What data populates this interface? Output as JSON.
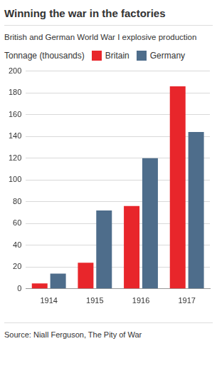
{
  "chart_data": {
    "type": "bar",
    "title": "Winning the war in the factories",
    "subtitle": "British and German World War I explosive production",
    "y_label": "Tonnage (thousands)",
    "source": "Source: Niall Ferguson, The Pity of War",
    "categories": [
      "1914",
      "1915",
      "1916",
      "1917"
    ],
    "series": [
      {
        "name": "Britain",
        "color": "#e8262b",
        "values": [
          5,
          24,
          76,
          186
        ]
      },
      {
        "name": "Germany",
        "color": "#4e6d8b",
        "values": [
          14,
          72,
          120,
          144
        ]
      }
    ],
    "ylim": [
      0,
      200
    ],
    "yticks": [
      0,
      20,
      40,
      60,
      80,
      100,
      120,
      140,
      160,
      180,
      200
    ],
    "grid": true,
    "legend": "top"
  }
}
